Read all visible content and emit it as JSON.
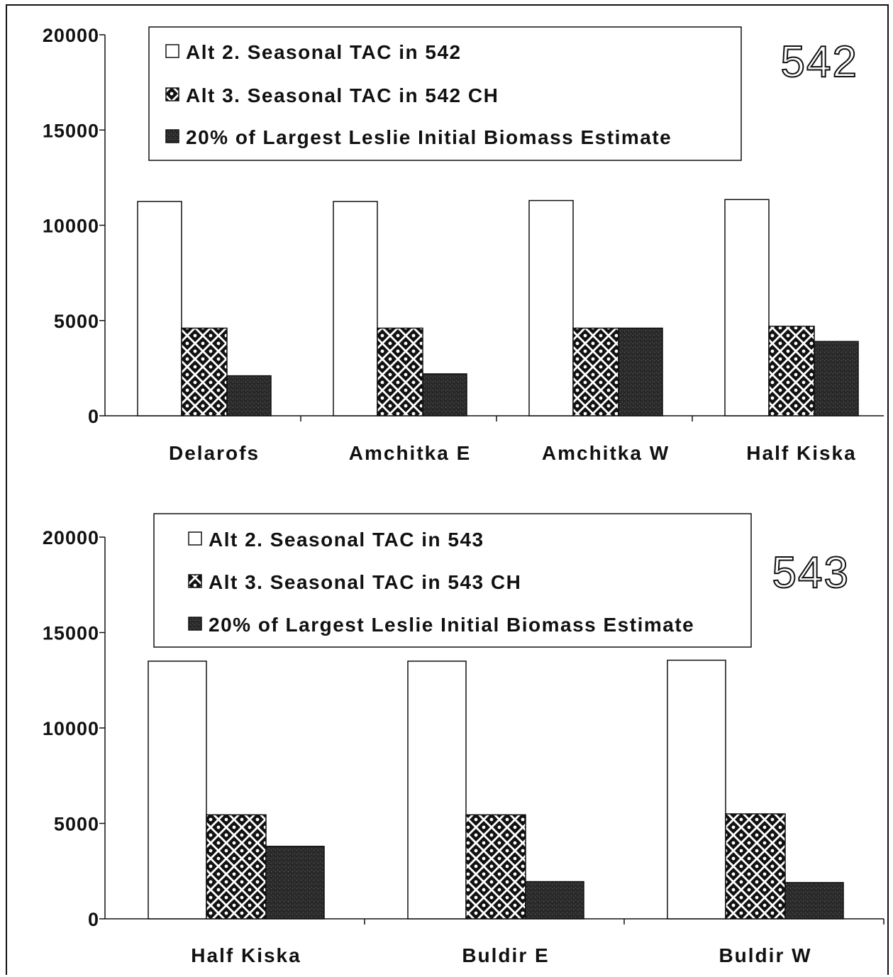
{
  "chart_data": [
    {
      "type": "bar",
      "title": "",
      "tag": "542",
      "xlabel": "",
      "ylabel": "",
      "ylim": [
        0,
        20000
      ],
      "yticks": [
        "0",
        "5000",
        "10000",
        "15000",
        "20000"
      ],
      "categories": [
        "Delarofs",
        "Amchitka E",
        "Amchitka W",
        "Half Kiska"
      ],
      "series": [
        {
          "name": "Alt 2. Seasonal TAC in 542",
          "pattern": "blank",
          "values": [
            11250,
            11250,
            11300,
            11350
          ]
        },
        {
          "name": "Alt 3. Seasonal TAC in 542 CH",
          "pattern": "checker",
          "values": [
            4600,
            4600,
            4600,
            4700
          ]
        },
        {
          "name": "20% of Largest Leslie Initial Biomass Estimate",
          "pattern": "dark",
          "values": [
            2100,
            2200,
            4600,
            3900
          ]
        }
      ],
      "legend_position": "top-center",
      "grid": false
    },
    {
      "type": "bar",
      "title": "",
      "tag": "543",
      "xlabel": "",
      "ylabel": "",
      "ylim": [
        0,
        20000
      ],
      "yticks": [
        "0",
        "5000",
        "10000",
        "15000",
        "20000"
      ],
      "categories": [
        "Half Kiska",
        "Buldir E",
        "Buldir W"
      ],
      "series": [
        {
          "name": "Alt 2. Seasonal TAC in 543",
          "pattern": "blank",
          "values": [
            13500,
            13500,
            13550
          ]
        },
        {
          "name": "Alt 3. Seasonal TAC in 543 CH",
          "pattern": "checker",
          "values": [
            5450,
            5450,
            5500
          ]
        },
        {
          "name": "20% of Largest Leslie Initial Biomass Estimate",
          "pattern": "dark",
          "values": [
            3800,
            1950,
            1900
          ]
        }
      ],
      "legend_position": "top-center",
      "grid": false
    }
  ],
  "colors": {
    "ink": "#111111",
    "blank": "#ffffff",
    "checker_fill": "#111111",
    "dark": "#2b2b2b"
  }
}
